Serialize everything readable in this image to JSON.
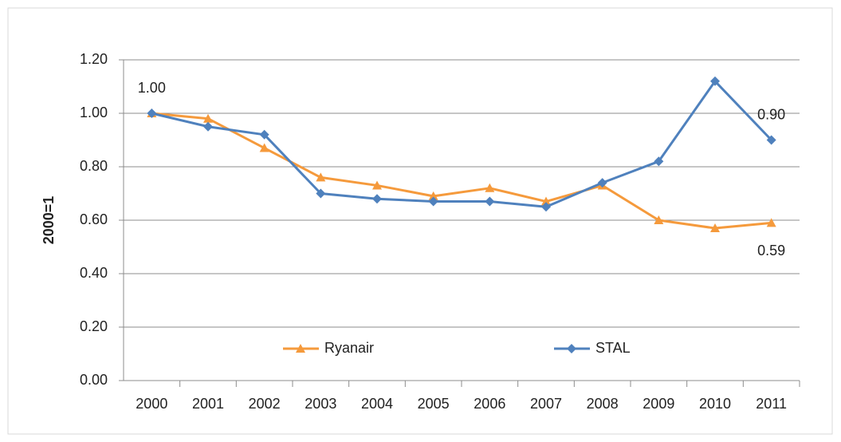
{
  "chart_data": {
    "type": "line",
    "ylabel": "2000=1",
    "categories": [
      "2000",
      "2001",
      "2002",
      "2003",
      "2004",
      "2005",
      "2006",
      "2007",
      "2008",
      "2009",
      "2010",
      "2011"
    ],
    "series": [
      {
        "name": "Ryanair",
        "color": "#f59a3c",
        "marker": "triangle",
        "values": [
          1.0,
          0.98,
          0.87,
          0.76,
          0.73,
          0.69,
          0.72,
          0.67,
          0.73,
          0.6,
          0.57,
          0.59
        ],
        "value_labels": [
          null,
          null,
          null,
          null,
          null,
          null,
          null,
          null,
          null,
          null,
          null,
          "0.59"
        ]
      },
      {
        "name": "STAL",
        "color": "#4f81bd",
        "marker": "diamond",
        "values": [
          1.0,
          0.95,
          0.92,
          0.7,
          0.68,
          0.67,
          0.67,
          0.65,
          0.74,
          0.82,
          1.12,
          0.9
        ],
        "value_labels": [
          "1.00",
          null,
          null,
          null,
          null,
          null,
          null,
          null,
          null,
          null,
          null,
          "0.90"
        ]
      }
    ],
    "ylim": [
      0,
      1.2
    ],
    "yticks": [
      {
        "value": 0,
        "label": "0.00"
      },
      {
        "value": 0.2,
        "label": "0.20"
      },
      {
        "value": 0.4,
        "label": "0.40"
      },
      {
        "value": 0.6,
        "label": "0.60"
      },
      {
        "value": 0.8,
        "label": "0.80"
      },
      {
        "value": 1,
        "label": "1.00"
      },
      {
        "value": 1.2,
        "label": "1.20"
      }
    ],
    "grid": true,
    "legend": "inside-bottom"
  }
}
